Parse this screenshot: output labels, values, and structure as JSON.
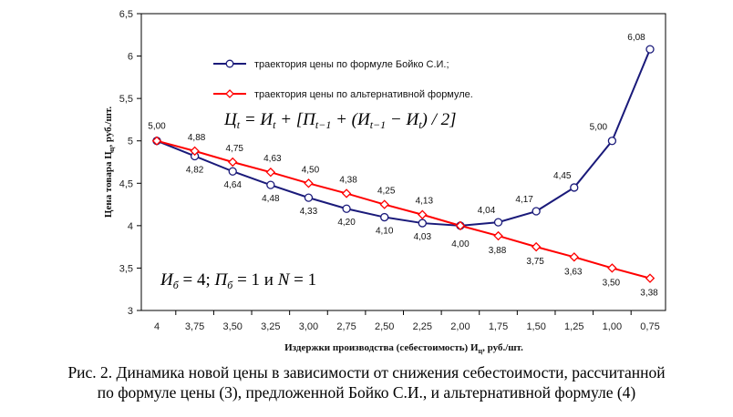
{
  "chart_data": {
    "type": "line",
    "categories": [
      "4",
      "3,75",
      "3,50",
      "3,25",
      "3,00",
      "2,75",
      "2,50",
      "2,25",
      "2,00",
      "1,75",
      "1,50",
      "1,25",
      "1,00",
      "0,75"
    ],
    "xlabel": "Издержки производства (себестоимость) И",
    "xlabel_sub": "ц",
    "xlabel_unit": ", руб./шт.",
    "ylabel": "Цена товара Ц",
    "ylabel_sub": "ц",
    "ylabel_unit": ", руб./шт.",
    "ylim": [
      3,
      6.5
    ],
    "yticks": [
      "3",
      "3,5",
      "4",
      "4,5",
      "5",
      "5,5",
      "6",
      "6,5"
    ],
    "ytick_values": [
      3,
      3.5,
      4,
      4.5,
      5,
      5.5,
      6,
      6.5
    ],
    "legend_position": "top-center",
    "series": [
      {
        "name": "траектория цены по формуле Бойко С.И.;",
        "color": "#1a1a7a",
        "marker": "circle",
        "values": [
          5.0,
          4.82,
          4.64,
          4.48,
          4.33,
          4.2,
          4.1,
          4.03,
          4.0,
          4.04,
          4.17,
          4.45,
          5.0,
          6.08
        ],
        "labels": [
          "5,00",
          "4,82",
          "4,64",
          "4,48",
          "4,33",
          "4,20",
          "4,10",
          "4,03",
          "4,00",
          "4,04",
          "4,17",
          "4,45",
          "5,00",
          "6,08"
        ]
      },
      {
        "name": "траектория цены по альтернативной формуле.",
        "color": "#ff0000",
        "marker": "diamond",
        "values": [
          5.0,
          4.88,
          4.75,
          4.63,
          4.5,
          4.38,
          4.25,
          4.13,
          4.0,
          3.88,
          3.75,
          3.63,
          3.5,
          3.38
        ],
        "labels": [
          "5,00",
          "4,88",
          "4,75",
          "4,63",
          "4,50",
          "4,38",
          "4,25",
          "4,13",
          "4,00",
          "3,88",
          "3,75",
          "3,63",
          "3,50",
          "3,38"
        ]
      }
    ],
    "annotations": {
      "formula": "Ц_t = И_t + [П_{t−1} + (И_{t−1} − И_t) / 2]",
      "params": "И_б = 4; П_б = 1 и N = 1"
    }
  },
  "caption_line1": "Рис. 2. Динамика новой цены в зависимости от снижения себестоимости, рассчитанной",
  "caption_line2": "по формуле цены (3), предложенной Бойко С.И., и альтернативной формуле (4)"
}
